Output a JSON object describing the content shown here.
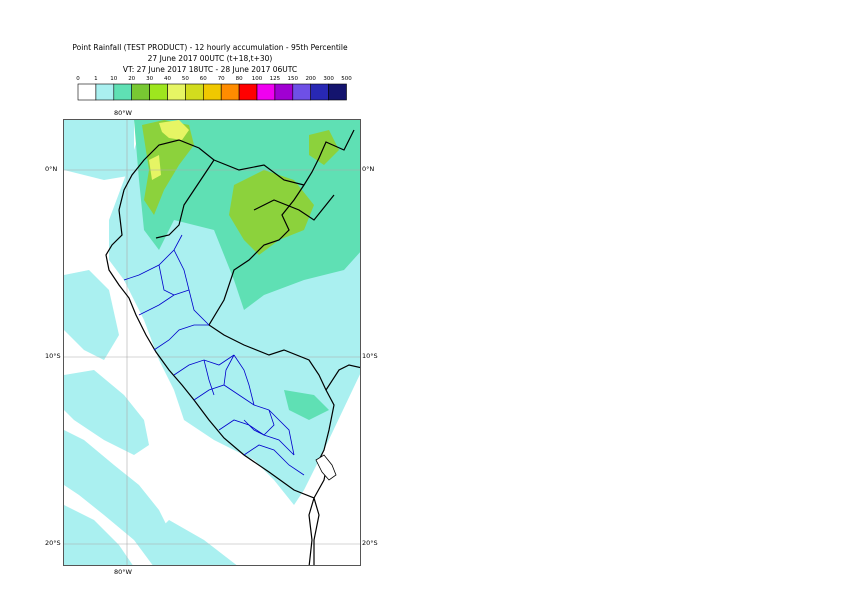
{
  "header": {
    "title_line1": "Point Rainfall (TEST PRODUCT) - 12 hourly accumulation - 95th Percentile",
    "title_line2": "27 June 2017 00UTC (t+18,t+30)",
    "title_line3": "VT: 27 June 2017 18UTC - 28 June 2017 06UTC"
  },
  "legend": {
    "thresholds": [
      "0",
      "1",
      "10",
      "20",
      "30",
      "40",
      "50",
      "60",
      "70",
      "80",
      "100",
      "125",
      "150",
      "200",
      "300",
      "500"
    ],
    "colors": [
      "#ffffff",
      "#aaf0f0",
      "#5fe0b4",
      "#78c832",
      "#9ee61e",
      "#e6f564",
      "#d2dc1e",
      "#f0c800",
      "#ff8c00",
      "#ff0000",
      "#f000f0",
      "#a000d2",
      "#6e50e6",
      "#2828b4",
      "#14146e"
    ]
  },
  "map": {
    "lat_labels": [
      "0°N",
      "10°S",
      "20°S"
    ],
    "lon_labels": [
      "80°W",
      "80°W"
    ],
    "colors": {
      "sea": "#ffffff",
      "light": "#aaf0f0",
      "medium": "#5fe0b4",
      "green": "#8cd23c",
      "yellow": "#e6f564",
      "country_border": "#000000",
      "region_border": "#0000cc",
      "gridline": "#aaaaaa"
    }
  }
}
